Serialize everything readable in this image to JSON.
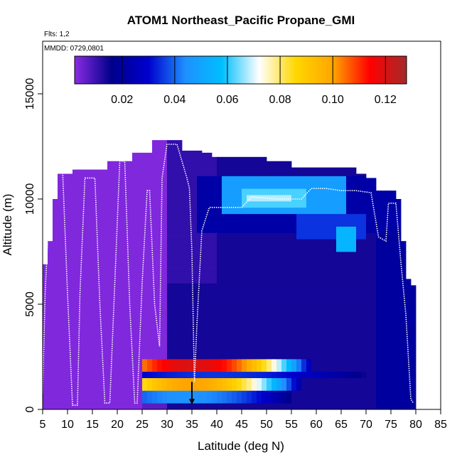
{
  "chart_data": {
    "type": "heatmap",
    "title": "ATOM1 Northeast_Pacific Propane_GMI",
    "annotations": [
      "Flts: 1,2",
      "MMDD: 0729,0801"
    ],
    "xlabel": "Latitude (deg N)",
    "ylabel": "Altitude (m)",
    "xlim": [
      5,
      85
    ],
    "ylim": [
      0,
      17500
    ],
    "x_ticks": [
      5,
      10,
      15,
      20,
      25,
      30,
      35,
      40,
      45,
      50,
      55,
      60,
      65,
      70,
      75,
      80,
      85
    ],
    "y_ticks": [
      0,
      5000,
      10000,
      15000
    ],
    "colorbar": {
      "range": [
        0.002,
        0.128
      ],
      "ticks": [
        0.02,
        0.04,
        0.06,
        0.08,
        0.1,
        0.12
      ],
      "tick_labels": [
        "0.02",
        "0.04",
        "0.06",
        "0.08",
        "0.10",
        "0.12"
      ],
      "colors": [
        "#8a2be2",
        "#00008b",
        "#0000cd",
        "#1e90ff",
        "#00bfff",
        "#ffffff",
        "#ffd700",
        "#ffa500",
        "#ff0000",
        "#a52a2a"
      ]
    },
    "marker": {
      "x": 35,
      "y": 700,
      "symbol": "down-arrow"
    },
    "flight_track": [
      [
        5.0,
        800
      ],
      [
        5.5,
        5500
      ],
      [
        6.5,
        10500
      ],
      [
        7.5,
        11400
      ],
      [
        9.0,
        11400
      ],
      [
        10.0,
        5500
      ],
      [
        11.0,
        200
      ],
      [
        12.0,
        200
      ],
      [
        12.5,
        5500
      ],
      [
        13.5,
        11000
      ],
      [
        15.5,
        11000
      ],
      [
        16.5,
        5000
      ],
      [
        17.5,
        300
      ],
      [
        18.5,
        300
      ],
      [
        19.5,
        6000
      ],
      [
        20.5,
        11800
      ],
      [
        21.5,
        11800
      ],
      [
        22.5,
        5000
      ],
      [
        23.5,
        300
      ],
      [
        24.0,
        300
      ],
      [
        25.0,
        6000
      ],
      [
        26.0,
        10400
      ],
      [
        26.5,
        10400
      ],
      [
        27.5,
        5000
      ],
      [
        28.5,
        3000
      ],
      [
        29.0,
        11000
      ],
      [
        30.0,
        12600
      ],
      [
        32.0,
        12600
      ],
      [
        34.0,
        11000
      ],
      [
        34.5,
        10500
      ],
      [
        35.0,
        7500
      ],
      [
        35.5,
        1300
      ],
      [
        36.0,
        4000
      ],
      [
        37.0,
        8500
      ],
      [
        38.5,
        9600
      ],
      [
        40.0,
        9600
      ],
      [
        45.0,
        9600
      ],
      [
        47.0,
        10100
      ],
      [
        52.0,
        10000
      ],
      [
        57.0,
        10000
      ],
      [
        59.0,
        10500
      ],
      [
        62.0,
        10500
      ],
      [
        65.0,
        10400
      ],
      [
        68.0,
        10400
      ],
      [
        71.0,
        10300
      ],
      [
        72.5,
        8200
      ],
      [
        74.0,
        8000
      ],
      [
        74.5,
        9800
      ],
      [
        76.0,
        9800
      ],
      [
        77.0,
        7000
      ],
      [
        78.0,
        4500
      ],
      [
        79.0,
        500
      ],
      [
        79.5,
        300
      ]
    ],
    "fill_columns": [
      [
        5,
        0,
        6900
      ],
      [
        6,
        0,
        8000
      ],
      [
        7,
        0,
        10000
      ],
      [
        8,
        0,
        11200
      ],
      [
        9,
        0,
        11200
      ],
      [
        10,
        0,
        11200
      ],
      [
        11,
        0,
        11400
      ],
      [
        12,
        0,
        11400
      ],
      [
        13,
        0,
        11400
      ],
      [
        14,
        0,
        11400
      ],
      [
        15,
        0,
        11400
      ],
      [
        16,
        0,
        11400
      ],
      [
        17,
        0,
        11400
      ],
      [
        18,
        0,
        11800
      ],
      [
        19,
        0,
        11800
      ],
      [
        20,
        0,
        11800
      ],
      [
        21,
        0,
        11800
      ],
      [
        22,
        0,
        11800
      ],
      [
        23,
        0,
        12200
      ],
      [
        24,
        0,
        12200
      ],
      [
        25,
        0,
        12200
      ],
      [
        26,
        0,
        12200
      ],
      [
        27,
        0,
        12800
      ],
      [
        28,
        0,
        12800
      ],
      [
        29,
        0,
        12800
      ],
      [
        30,
        0,
        12800
      ],
      [
        31,
        0,
        12800
      ],
      [
        32,
        0,
        12800
      ],
      [
        33,
        0,
        12300
      ],
      [
        34,
        0,
        12300
      ],
      [
        35,
        0,
        12300
      ],
      [
        36,
        0,
        12300
      ],
      [
        37,
        0,
        12200
      ],
      [
        38,
        0,
        12200
      ],
      [
        39,
        0,
        12000
      ],
      [
        40,
        0,
        12000
      ],
      [
        41,
        0,
        12000
      ],
      [
        42,
        0,
        12000
      ],
      [
        43,
        0,
        12000
      ],
      [
        44,
        0,
        12000
      ],
      [
        45,
        0,
        12000
      ],
      [
        46,
        0,
        12000
      ],
      [
        47,
        0,
        12000
      ],
      [
        48,
        0,
        12000
      ],
      [
        49,
        0,
        12000
      ],
      [
        50,
        0,
        11800
      ],
      [
        51,
        0,
        11800
      ],
      [
        52,
        0,
        11800
      ],
      [
        53,
        0,
        11800
      ],
      [
        54,
        0,
        11800
      ],
      [
        55,
        0,
        11500
      ],
      [
        56,
        0,
        11500
      ],
      [
        57,
        0,
        11500
      ],
      [
        58,
        0,
        11500
      ],
      [
        59,
        0,
        11500
      ],
      [
        60,
        0,
        11500
      ],
      [
        61,
        0,
        11500
      ],
      [
        62,
        0,
        11500
      ],
      [
        63,
        0,
        11500
      ],
      [
        64,
        0,
        11500
      ],
      [
        65,
        0,
        11500
      ],
      [
        66,
        0,
        11500
      ],
      [
        67,
        0,
        11500
      ],
      [
        68,
        0,
        11200
      ],
      [
        69,
        0,
        11200
      ],
      [
        70,
        0,
        11000
      ],
      [
        71,
        0,
        11000
      ],
      [
        72,
        0,
        10400
      ],
      [
        73,
        0,
        10400
      ],
      [
        74,
        0,
        10400
      ],
      [
        75,
        0,
        10400
      ],
      [
        76,
        0,
        10000
      ],
      [
        77,
        0,
        8000
      ],
      [
        78,
        0,
        6200
      ],
      [
        79,
        0,
        5900
      ]
    ],
    "hot_bands": [
      {
        "x": [
          25.5,
          59
        ],
        "y": [
          1900,
          2400
        ],
        "peak_x": 35,
        "peak": 0.12
      },
      {
        "x": [
          25.5,
          57
        ],
        "y": [
          1000,
          1400
        ],
        "peak_x": 35,
        "peak": 0.1
      },
      {
        "x": [
          25.5,
          55
        ],
        "y": [
          400,
          900
        ],
        "peak_x": 34,
        "peak": 0.045
      },
      {
        "x": [
          25.5,
          70
        ],
        "y": [
          1450,
          1850
        ],
        "peak_x": 40,
        "peak": 0.035
      }
    ],
    "blobs": [
      {
        "x": [
          41,
          66
        ],
        "y": [
          9200,
          11000
        ],
        "value": 0.048
      },
      {
        "x": [
          45,
          58
        ],
        "y": [
          9600,
          10400
        ],
        "value": 0.062
      },
      {
        "x": [
          46,
          55
        ],
        "y": [
          9800,
          10200
        ],
        "value": 0.068
      },
      {
        "x": [
          64,
          68
        ],
        "y": [
          7400,
          8700
        ],
        "value": 0.055
      },
      {
        "x": [
          56,
          70
        ],
        "y": [
          8200,
          9200
        ],
        "value": 0.035
      }
    ]
  }
}
